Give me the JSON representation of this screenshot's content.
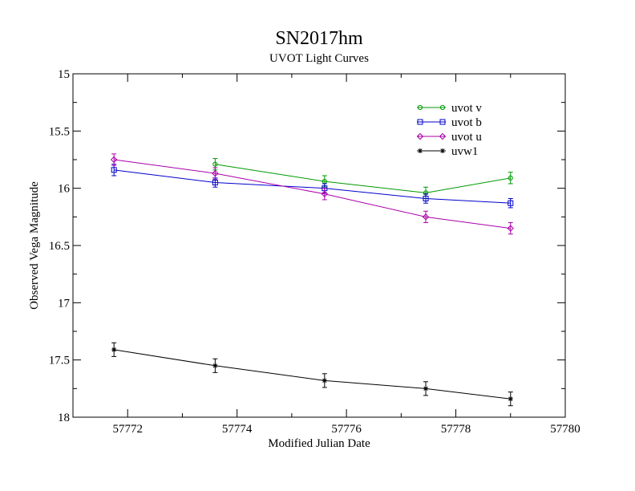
{
  "chart_data": {
    "type": "line",
    "title": "SN2017hm",
    "subtitle": "UVOT Light Curves",
    "xlabel": "Modified Julian Date",
    "ylabel": "Observed Vega Magnitude",
    "xlim": [
      57771,
      57780
    ],
    "ylim": [
      15,
      18
    ],
    "y_inverted": true,
    "x_ticks": [
      57772,
      57774,
      57776,
      57778,
      57780
    ],
    "y_ticks": [
      15,
      15.5,
      16,
      16.5,
      17,
      17.5,
      18
    ],
    "x_tick_labels": [
      "57772",
      "57774",
      "57776",
      "57778",
      "57780"
    ],
    "y_tick_labels": [
      "15",
      "15.5",
      "16",
      "16.5",
      "17",
      "17.5",
      "18"
    ],
    "grid": false,
    "legend_position": "top-right",
    "series": [
      {
        "name": "uvot v",
        "color": "#009900",
        "marker": "circle",
        "x": [
          57773.6,
          57775.6,
          57777.45,
          57779.0
        ],
        "y": [
          15.79,
          15.94,
          16.04,
          15.91
        ],
        "err": [
          0.05,
          0.05,
          0.05,
          0.05
        ]
      },
      {
        "name": "uvot b",
        "color": "#0000cc",
        "marker": "square",
        "x": [
          57771.75,
          57773.6,
          57775.6,
          57777.45,
          57779.0
        ],
        "y": [
          15.84,
          15.95,
          16.0,
          16.09,
          16.13
        ],
        "err": [
          0.05,
          0.04,
          0.04,
          0.04,
          0.04
        ]
      },
      {
        "name": "uvot u",
        "color": "#aa00aa",
        "marker": "diamond",
        "x": [
          57771.75,
          57773.6,
          57775.6,
          57777.45,
          57779.0
        ],
        "y": [
          15.75,
          15.87,
          16.05,
          16.25,
          16.35
        ],
        "err": [
          0.05,
          0.05,
          0.05,
          0.05,
          0.05
        ]
      },
      {
        "name": "uvw1",
        "color": "#000000",
        "marker": "star",
        "x": [
          57771.75,
          57773.6,
          57775.6,
          57777.45,
          57779.0
        ],
        "y": [
          17.41,
          17.55,
          17.68,
          17.75,
          17.84
        ],
        "err": [
          0.06,
          0.06,
          0.06,
          0.06,
          0.06
        ]
      }
    ]
  }
}
